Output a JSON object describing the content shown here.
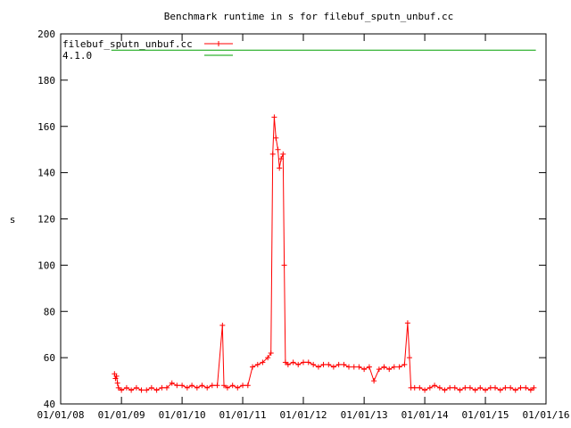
{
  "chart_data": {
    "type": "line",
    "title": "Benchmark runtime in s for filebuf_sputn_unbuf.cc",
    "xlabel": "",
    "ylabel": "s",
    "ylim": [
      40,
      200
    ],
    "yticks": [
      40,
      60,
      80,
      100,
      120,
      140,
      160,
      180,
      200
    ],
    "xlim": [
      "2008-01-01",
      "2016-01-01"
    ],
    "xticks": [
      "01/01/08",
      "01/01/09",
      "01/01/10",
      "01/01/11",
      "01/01/12",
      "01/01/13",
      "01/01/14",
      "01/01/15",
      "01/01/16"
    ],
    "grid": false,
    "legend_position": "top-left",
    "series": [
      {
        "name": "filebuf_sputn_unbuf.cc",
        "color": "#ff0000",
        "marker": "plus",
        "points": [
          [
            "2008-11-20",
            53
          ],
          [
            "2008-11-26",
            51
          ],
          [
            "2008-12-02",
            52
          ],
          [
            "2008-12-08",
            49
          ],
          [
            "2008-12-14",
            47
          ],
          [
            "2009-01-01",
            46
          ],
          [
            "2009-02-01",
            47
          ],
          [
            "2009-03-01",
            46
          ],
          [
            "2009-04-01",
            47
          ],
          [
            "2009-05-01",
            46
          ],
          [
            "2009-06-01",
            46
          ],
          [
            "2009-07-01",
            47
          ],
          [
            "2009-08-01",
            46
          ],
          [
            "2009-09-01",
            47
          ],
          [
            "2009-10-01",
            47
          ],
          [
            "2009-11-01",
            49
          ],
          [
            "2009-12-01",
            48
          ],
          [
            "2010-01-01",
            48
          ],
          [
            "2010-02-01",
            47
          ],
          [
            "2010-03-01",
            48
          ],
          [
            "2010-04-01",
            47
          ],
          [
            "2010-05-01",
            48
          ],
          [
            "2010-06-01",
            47
          ],
          [
            "2010-07-01",
            48
          ],
          [
            "2010-08-01",
            48
          ],
          [
            "2010-09-01",
            74
          ],
          [
            "2010-09-10",
            48
          ],
          [
            "2010-10-01",
            47
          ],
          [
            "2010-11-01",
            48
          ],
          [
            "2010-12-01",
            47
          ],
          [
            "2011-01-01",
            48
          ],
          [
            "2011-02-01",
            48
          ],
          [
            "2011-03-01",
            56
          ],
          [
            "2011-04-01",
            57
          ],
          [
            "2011-05-01",
            58
          ],
          [
            "2011-06-01",
            60
          ],
          [
            "2011-06-20",
            62
          ],
          [
            "2011-07-01",
            148
          ],
          [
            "2011-07-10",
            164
          ],
          [
            "2011-07-20",
            155
          ],
          [
            "2011-08-01",
            150
          ],
          [
            "2011-08-10",
            142
          ],
          [
            "2011-08-20",
            146
          ],
          [
            "2011-09-01",
            148
          ],
          [
            "2011-09-08",
            100
          ],
          [
            "2011-09-15",
            58
          ],
          [
            "2011-10-01",
            57
          ],
          [
            "2011-11-01",
            58
          ],
          [
            "2011-12-01",
            57
          ],
          [
            "2012-01-01",
            58
          ],
          [
            "2012-02-01",
            58
          ],
          [
            "2012-03-01",
            57
          ],
          [
            "2012-04-01",
            56
          ],
          [
            "2012-05-01",
            57
          ],
          [
            "2012-06-01",
            57
          ],
          [
            "2012-07-01",
            56
          ],
          [
            "2012-08-01",
            57
          ],
          [
            "2012-09-01",
            57
          ],
          [
            "2012-10-01",
            56
          ],
          [
            "2012-11-01",
            56
          ],
          [
            "2012-12-01",
            56
          ],
          [
            "2013-01-01",
            55
          ],
          [
            "2013-02-01",
            56
          ],
          [
            "2013-03-01",
            50
          ],
          [
            "2013-04-01",
            55
          ],
          [
            "2013-05-01",
            56
          ],
          [
            "2013-06-01",
            55
          ],
          [
            "2013-07-01",
            56
          ],
          [
            "2013-08-01",
            56
          ],
          [
            "2013-09-01",
            57
          ],
          [
            "2013-09-20",
            75
          ],
          [
            "2013-10-01",
            60
          ],
          [
            "2013-10-10",
            47
          ],
          [
            "2013-11-01",
            47
          ],
          [
            "2013-12-01",
            47
          ],
          [
            "2014-01-01",
            46
          ],
          [
            "2014-02-01",
            47
          ],
          [
            "2014-03-01",
            48
          ],
          [
            "2014-04-01",
            47
          ],
          [
            "2014-05-01",
            46
          ],
          [
            "2014-06-01",
            47
          ],
          [
            "2014-07-01",
            47
          ],
          [
            "2014-08-01",
            46
          ],
          [
            "2014-09-01",
            47
          ],
          [
            "2014-10-01",
            47
          ],
          [
            "2014-11-01",
            46
          ],
          [
            "2014-12-01",
            47
          ],
          [
            "2015-01-01",
            46
          ],
          [
            "2015-02-01",
            47
          ],
          [
            "2015-03-01",
            47
          ],
          [
            "2015-04-01",
            46
          ],
          [
            "2015-05-01",
            47
          ],
          [
            "2015-06-01",
            47
          ],
          [
            "2015-07-01",
            46
          ],
          [
            "2015-08-01",
            47
          ],
          [
            "2015-09-01",
            47
          ],
          [
            "2015-10-01",
            46
          ],
          [
            "2015-10-20",
            47
          ]
        ]
      },
      {
        "name": "4.1.0",
        "color": "#00a000",
        "marker": "none",
        "points": [
          [
            "2008-11-01",
            193
          ],
          [
            "2015-11-01",
            193
          ]
        ]
      }
    ]
  }
}
